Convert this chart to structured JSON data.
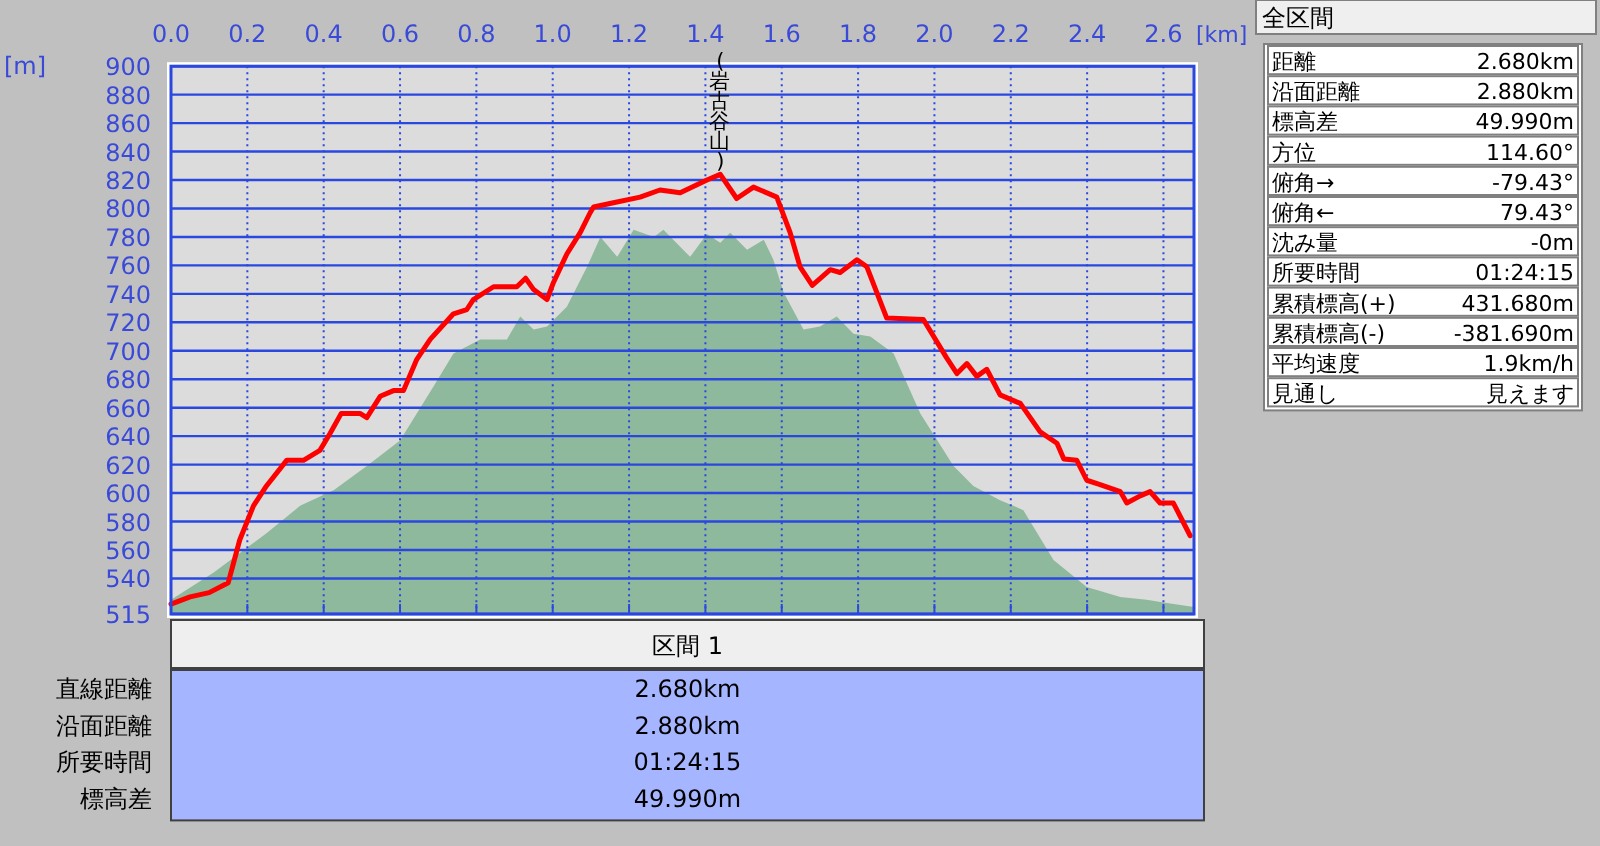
{
  "chart_data": [
    {
      "type": "line",
      "xlabel": "[km]",
      "ylabel": "[m]",
      "xlim": [
        0,
        2.68
      ],
      "ylim": [
        515,
        900
      ],
      "xticks": [
        {
          "value": 0,
          "label": "0.0"
        },
        {
          "value": 0.2,
          "label": "0.2"
        },
        {
          "value": 0.4,
          "label": "0.4"
        },
        {
          "value": 0.6,
          "label": "0.6"
        },
        {
          "value": 0.8,
          "label": "0.8"
        },
        {
          "value": 1.0,
          "label": "1.0"
        },
        {
          "value": 1.2,
          "label": "1.2"
        },
        {
          "value": 1.4,
          "label": "1.4"
        },
        {
          "value": 1.6,
          "label": "1.6"
        },
        {
          "value": 1.8,
          "label": "1.8"
        },
        {
          "value": 2.0,
          "label": "2.0"
        },
        {
          "value": 2.2,
          "label": "2.2"
        },
        {
          "value": 2.4,
          "label": "2.4"
        },
        {
          "value": 2.6,
          "label": "2.6"
        }
      ],
      "yticks": [
        515,
        540,
        560,
        580,
        600,
        620,
        640,
        660,
        680,
        700,
        720,
        740,
        760,
        780,
        800,
        820,
        840,
        860,
        880,
        900
      ],
      "grid": true,
      "marker": "none",
      "line_style": "solid",
      "series": [
        {
          "type": "area",
          "color": "#8fb99c",
          "x": [
            0,
            0.111,
            0.251,
            0.338,
            0.426,
            0.513,
            0.6,
            0.688,
            0.74,
            0.81,
            0.88,
            0.915,
            0.95,
            0.985,
            1.037,
            1.09,
            1.125,
            1.169,
            1.212,
            1.265,
            1.29,
            1.36,
            1.404,
            1.439,
            1.465,
            1.509,
            1.553,
            1.578,
            1.605,
            1.657,
            1.7,
            1.744,
            1.788,
            1.832,
            1.893,
            1.963,
            2.05,
            2.102,
            2.172,
            2.233,
            2.312,
            2.399,
            2.487,
            2.556,
            2.6,
            2.68
          ],
          "values": [
            525,
            544,
            572,
            591,
            602,
            619,
            637,
            675,
            698,
            708,
            708,
            724,
            715,
            717,
            731,
            759,
            780,
            766,
            785,
            780,
            785,
            766,
            782,
            776,
            783,
            771,
            778,
            764,
            741,
            715,
            717,
            724,
            712,
            710,
            698,
            656,
            619,
            605,
            595,
            588,
            553,
            534,
            527,
            525,
            523,
            520
          ]
        },
        {
          "type": "line",
          "color": "#ff0000",
          "x": [
            0,
            0.05,
            0.1,
            0.15,
            0.18,
            0.216,
            0.25,
            0.303,
            0.347,
            0.39,
            0.417,
            0.446,
            0.495,
            0.513,
            0.548,
            0.583,
            0.609,
            0.644,
            0.679,
            0.74,
            0.775,
            0.792,
            0.845,
            0.906,
            0.929,
            0.95,
            0.985,
            1.002,
            1.037,
            1.072,
            1.098,
            1.107,
            1.159,
            1.229,
            1.281,
            1.334,
            1.404,
            1.439,
            1.482,
            1.526,
            1.587,
            1.622,
            1.648,
            1.68,
            1.727,
            1.753,
            1.797,
            1.823,
            1.875,
            1.971,
            2.032,
            2.059,
            2.085,
            2.111,
            2.137,
            2.172,
            2.225,
            2.277,
            2.321,
            2.339,
            2.373,
            2.399,
            2.434,
            2.487,
            2.504,
            2.539,
            2.565,
            2.591,
            2.626,
            2.67
          ],
          "values": [
            522,
            527,
            530,
            537,
            567,
            591,
            605,
            623,
            623,
            630,
            642,
            656,
            656,
            653,
            668,
            672,
            672,
            694,
            708,
            726,
            729,
            736,
            745,
            745,
            751,
            743,
            736,
            748,
            768,
            783,
            797,
            801,
            804,
            808,
            813,
            811,
            820,
            824,
            807,
            815,
            808,
            783,
            759,
            746,
            757,
            755,
            764,
            759,
            723,
            722,
            695,
            684,
            691,
            682,
            687,
            669,
            663,
            643,
            635,
            624,
            623,
            609,
            606,
            601,
            593,
            598,
            601,
            593,
            593,
            570
          ]
        }
      ],
      "annotations": [
        {
          "text": "(岩古谷山)",
          "x": 1.439,
          "y": 824
        }
      ]
    },
    {
      "type": "other",
      "title": "全区間",
      "annotations": [
        "距離",
        "2.680km",
        "沿面距離",
        "2.880km",
        "標高差",
        "49.990m",
        "方位",
        "114.60°",
        "俯角→",
        "-79.43°",
        "俯角←",
        "79.43°",
        "沈み量",
        "-0m",
        "所要時間",
        "01:24:15",
        "累積標高(+)",
        "431.680m",
        "累積標高(-)",
        "-381.690m",
        "平均速度",
        "1.9km/h",
        "見通し",
        "見えます"
      ]
    },
    {
      "type": "other",
      "title": "区間 1",
      "annotations": [
        "直線距離",
        "2.680km",
        "沿面距離",
        "2.880km",
        "所要時間",
        "01:24:15",
        "標高差",
        "49.990m"
      ]
    }
  ]
}
